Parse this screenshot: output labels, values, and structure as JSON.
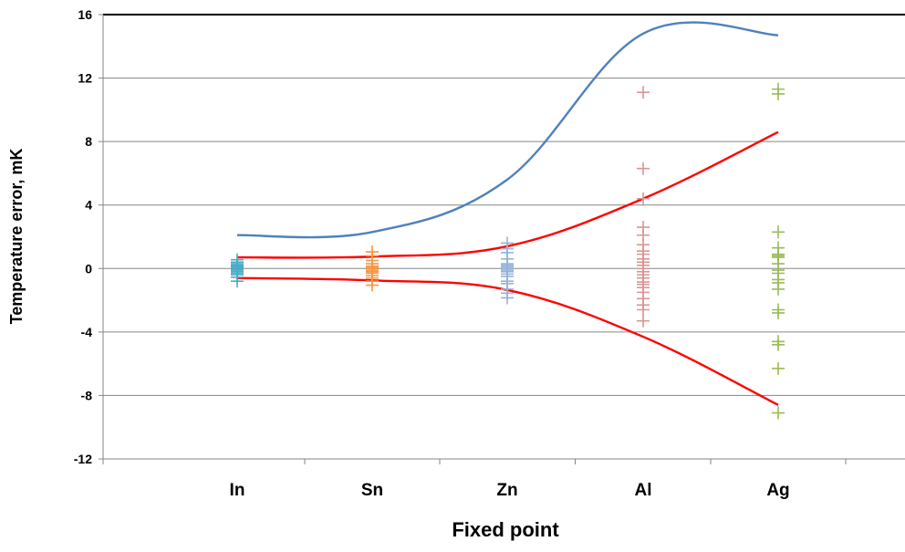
{
  "chart_data": {
    "type": "scatter",
    "title": "",
    "xlabel": "Fixed point",
    "ylabel": "Temperature error,  mK",
    "categories": [
      "In",
      "Sn",
      "Zn",
      "Al",
      "Ag"
    ],
    "ylim": [
      -12,
      16
    ],
    "yticks": [
      -12,
      -8,
      -4,
      0,
      4,
      8,
      12,
      16
    ],
    "grid": true,
    "legend": "none",
    "lines": [
      {
        "color": "#4f81bd",
        "values": [
          2.1,
          2.3,
          5.6,
          14.8,
          14.7
        ]
      },
      {
        "color": "#ff0000",
        "values": [
          0.7,
          0.75,
          1.4,
          4.4,
          8.6
        ]
      },
      {
        "color": "#ff0000",
        "values": [
          -0.6,
          -0.75,
          -1.35,
          -4.3,
          -8.6
        ]
      }
    ],
    "points": [
      {
        "category": "In",
        "color": "#4bacc6",
        "values": [
          0.55,
          0.4,
          0.3,
          0.2,
          0.15,
          0.1,
          0.05,
          0.0,
          -0.05,
          -0.1,
          -0.2,
          -0.3,
          -0.4,
          -0.55,
          -0.8
        ]
      },
      {
        "category": "Sn",
        "color": "#f79646",
        "values": [
          1.05,
          0.8,
          0.5,
          0.3,
          0.15,
          0.05,
          0.0,
          -0.1,
          -0.2,
          -0.3,
          -0.45,
          -0.6,
          -0.8,
          -1.05
        ]
      },
      {
        "category": "Zn",
        "color": "#95b3d7",
        "values": [
          1.6,
          1.25,
          1.0,
          0.6,
          0.3,
          0.2,
          0.1,
          0.0,
          -0.1,
          -0.2,
          -0.35,
          -0.5,
          -0.8,
          -0.95,
          -1.3,
          -1.55,
          -1.85
        ]
      },
      {
        "category": "Al",
        "color": "#d99694",
        "values": [
          11.1,
          6.3,
          4.4,
          2.6,
          2.1,
          1.5,
          1.1,
          0.9,
          0.6,
          0.4,
          0.2,
          0.0,
          -0.2,
          -0.4,
          -0.6,
          -0.85,
          -1.0,
          -1.2,
          -1.5,
          -1.9,
          -2.3,
          -2.6,
          -3.3
        ]
      },
      {
        "category": "Ag",
        "color": "#9bbb59",
        "values": [
          11.3,
          11.0,
          2.3,
          1.3,
          0.9,
          0.8,
          0.7,
          0.3,
          -0.1,
          -0.3,
          -0.7,
          -0.9,
          -1.3,
          -2.6,
          -2.8,
          -4.6,
          -4.8,
          -6.3,
          -9.1
        ]
      }
    ]
  }
}
